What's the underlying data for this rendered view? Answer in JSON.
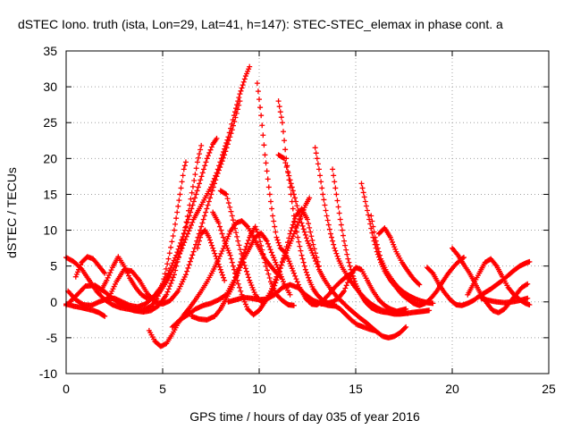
{
  "chart_data": {
    "type": "scatter",
    "title": "dSTEC Iono. truth (ista, Lon=29, Lat=41, h=147): STEC-STEC_elemax in phase cont. a",
    "xlabel": "GPS time / hours of day 035 of year 2016",
    "ylabel": "dSTEC  / TECUs",
    "xlim": [
      0,
      25
    ],
    "ylim": [
      -10,
      35
    ],
    "x_ticks": [
      0,
      5,
      10,
      15,
      20,
      25
    ],
    "y_ticks": [
      -10,
      -5,
      0,
      5,
      10,
      15,
      20,
      25,
      30,
      35
    ],
    "grid": true,
    "marker": "plus",
    "color": "#ff0000",
    "series": [
      {
        "x": [
          0.0,
          0.4,
          0.8,
          1.2,
          1.6,
          2.0,
          2.4,
          2.8,
          3.2,
          3.6,
          4.0,
          4.4,
          4.7,
          5.0,
          5.3,
          5.6,
          5.9,
          6.1,
          6.2
        ],
        "values": [
          6.2,
          5.6,
          4.6,
          3.0,
          1.4,
          0.3,
          -0.4,
          -0.8,
          -1.0,
          -1.2,
          -1.1,
          -0.6,
          0.4,
          2.5,
          6.0,
          10.0,
          15.0,
          18.5,
          19.5
        ]
      },
      {
        "x": [
          0.0,
          0.5,
          1.0,
          1.5,
          2.0,
          2.5,
          3.0,
          3.5,
          4.0,
          4.4,
          4.8,
          5.2,
          5.6,
          6.0,
          6.4,
          6.8,
          7.0
        ],
        "values": [
          -0.5,
          0.8,
          2.2,
          2.3,
          1.4,
          0.3,
          -0.6,
          -1.2,
          -1.4,
          -1.2,
          -0.5,
          1.0,
          3.8,
          8.0,
          13.5,
          19.5,
          21.8
        ]
      },
      {
        "x": [
          0.0,
          0.4,
          0.8,
          1.1,
          1.4,
          1.7,
          2.0
        ],
        "values": [
          -0.3,
          -0.6,
          -0.8,
          -1.0,
          -1.2,
          -1.5,
          -2.0
        ]
      },
      {
        "x": [
          0.1,
          0.5,
          0.9,
          1.3,
          1.7,
          2.1,
          2.5,
          2.9,
          3.3,
          3.7,
          4.1,
          4.5,
          4.9,
          5.3,
          5.7,
          6.1,
          6.5,
          6.9,
          7.3,
          7.6,
          7.8
        ],
        "values": [
          1.5,
          0.3,
          -0.4,
          -0.5,
          0.0,
          0.4,
          0.5,
          0.0,
          -0.5,
          -0.7,
          -0.3,
          0.6,
          2.0,
          4.0,
          6.5,
          9.5,
          13.0,
          16.5,
          20.0,
          22.0,
          22.8
        ]
      },
      {
        "x": [
          0.5,
          0.8,
          1.1,
          1.4,
          1.7,
          2.0
        ],
        "values": [
          3.5,
          5.5,
          6.3,
          6.0,
          5.0,
          4.0
        ]
      },
      {
        "x": [
          1.8,
          2.1,
          2.4,
          2.7,
          3.0,
          3.3,
          3.6,
          3.9,
          4.2,
          4.5,
          4.8,
          5.1,
          5.4,
          5.7,
          6.0,
          6.3,
          6.6,
          6.9,
          7.2,
          7.5,
          7.8,
          8.1,
          8.4,
          8.7,
          9.0,
          9.3,
          9.5
        ],
        "values": [
          1.5,
          3.0,
          4.8,
          6.3,
          5.0,
          3.3,
          2.0,
          1.0,
          0.5,
          0.6,
          1.2,
          2.4,
          3.8,
          5.5,
          7.5,
          9.5,
          11.5,
          13.0,
          14.5,
          16.0,
          18.0,
          20.5,
          23.0,
          26.0,
          29.0,
          31.5,
          32.8
        ]
      },
      {
        "x": [
          2.2,
          2.6,
          3.0,
          3.4,
          3.8,
          4.2,
          4.6,
          5.0,
          5.4,
          5.8,
          6.2,
          6.6,
          7.0,
          7.4,
          7.8,
          8.2,
          8.6,
          9.0
        ],
        "values": [
          0.5,
          2.8,
          4.5,
          4.3,
          3.0,
          1.2,
          0.0,
          -0.3,
          0.2,
          1.5,
          3.8,
          7.0,
          10.5,
          14.0,
          17.5,
          20.5,
          24.0,
          28.0
        ]
      },
      {
        "x": [
          4.3,
          4.6,
          4.9,
          5.2,
          5.5,
          5.8,
          6.1,
          6.4,
          6.7,
          7.0,
          7.3,
          7.6,
          7.9,
          8.2,
          8.5,
          8.8,
          9.1,
          9.4,
          9.7,
          10.0,
          10.3,
          10.6,
          10.9,
          11.1
        ],
        "values": [
          -4.0,
          -5.5,
          -6.2,
          -5.8,
          -4.5,
          -3.0,
          -1.8,
          -0.8,
          0.3,
          1.5,
          2.8,
          4.3,
          6.0,
          7.8,
          9.8,
          11.0,
          11.3,
          10.5,
          9.0,
          7.5,
          6.0,
          5.0,
          4.0,
          3.5
        ]
      },
      {
        "x": [
          5.5,
          5.9,
          6.3,
          6.7,
          7.1,
          7.5,
          7.9,
          8.3,
          8.7,
          9.1,
          9.5,
          9.8,
          10.0,
          10.3,
          10.6,
          10.9,
          11.2,
          11.5,
          11.8
        ],
        "values": [
          -3.5,
          -2.5,
          -1.8,
          -1.0,
          -0.5,
          -0.2,
          0.3,
          1.0,
          3.0,
          6.0,
          9.0,
          10.5,
          9.0,
          5.5,
          2.8,
          1.0,
          0.2,
          -0.4,
          -0.5
        ]
      },
      {
        "x": [
          6.5,
          6.9,
          7.3,
          7.7,
          8.0,
          8.3,
          8.6,
          8.9,
          9.2,
          9.5,
          9.8,
          10.1,
          10.4,
          10.7,
          11.0,
          11.3,
          11.6
        ],
        "values": [
          -2.0,
          -2.4,
          -2.5,
          -2.0,
          -1.0,
          0.5,
          2.0,
          4.0,
          6.0,
          7.5,
          9.0,
          9.6,
          8.5,
          6.5,
          4.5,
          2.5,
          1.0
        ]
      },
      {
        "x": [
          6.8,
          7.0,
          7.2,
          7.4,
          7.6,
          7.8,
          8.0,
          8.2
        ],
        "values": [
          7.5,
          9.5,
          10.0,
          9.0,
          7.5,
          6.0,
          4.5,
          3.0
        ]
      },
      {
        "x": [
          7.6,
          7.9,
          8.2,
          8.5,
          8.8,
          9.1,
          9.4,
          9.7,
          10.0,
          10.3,
          10.6,
          10.9,
          11.2,
          11.5,
          11.8,
          12.1,
          12.4,
          12.6
        ],
        "values": [
          12.5,
          11.0,
          8.5,
          6.5,
          3.5,
          1.0,
          -1.0,
          -1.8,
          -1.2,
          0.0,
          1.5,
          3.5,
          5.5,
          7.5,
          9.5,
          11.5,
          13.5,
          14.5
        ]
      },
      {
        "x": [
          8.0,
          8.3,
          8.6,
          8.9,
          9.2,
          9.5,
          9.8,
          10.1,
          10.4,
          10.7,
          11.0,
          11.3,
          11.6,
          11.9,
          12.2,
          12.5,
          12.8,
          13.1
        ],
        "values": [
          15.5,
          15.0,
          12.0,
          8.5,
          5.5,
          3.0,
          1.0,
          0.0,
          0.3,
          1.5,
          3.8,
          6.5,
          9.5,
          12.0,
          13.0,
          11.5,
          8.0,
          5.0
        ]
      },
      {
        "x": [
          8.4,
          8.8,
          9.2,
          9.6,
          10.0,
          10.4,
          10.8,
          11.2,
          11.6,
          12.0,
          12.4,
          12.8,
          13.2,
          13.6,
          14.0
        ],
        "values": [
          0.0,
          0.3,
          0.6,
          0.5,
          0.3,
          0.4,
          1.0,
          2.0,
          2.4,
          2.0,
          1.0,
          0.2,
          -0.2,
          -0.5,
          -0.6
        ]
      },
      {
        "x": [
          9.9,
          10.1,
          10.3,
          10.5,
          10.7,
          10.9,
          11.1,
          11.3,
          11.5,
          11.8,
          12.1,
          12.4,
          12.7,
          13.0,
          13.3,
          13.6,
          13.9,
          14.2,
          14.5,
          14.8
        ],
        "values": [
          30.5,
          26.0,
          20.5,
          16.0,
          12.0,
          9.0,
          7.5,
          7.0,
          6.0,
          4.0,
          2.0,
          0.5,
          -0.3,
          -0.4,
          0.2,
          1.0,
          2.0,
          2.8,
          3.5,
          4.0
        ]
      },
      {
        "x": [
          11.0,
          11.2,
          11.4,
          11.6,
          11.8,
          12.0,
          12.2,
          12.4,
          12.6,
          12.8,
          13.0,
          13.3,
          13.6,
          13.9,
          14.2,
          14.5,
          14.8,
          15.1,
          15.4,
          15.7,
          16.0
        ],
        "values": [
          28.0,
          25.0,
          20.0,
          16.0,
          12.0,
          9.0,
          6.5,
          4.5,
          3.0,
          1.8,
          1.0,
          0.2,
          -0.2,
          -0.5,
          -1.0,
          -1.8,
          -2.6,
          -3.2,
          -3.5,
          -3.8,
          -4.0
        ]
      },
      {
        "x": [
          11.0,
          11.3,
          11.6,
          11.9,
          12.2,
          12.5,
          12.8,
          13.1,
          13.4,
          13.7,
          14.0,
          14.3,
          14.6,
          14.9,
          15.2,
          15.5,
          15.8,
          16.1,
          16.4,
          16.7,
          17.0,
          17.3,
          17.6
        ],
        "values": [
          20.5,
          20.0,
          17.0,
          14.0,
          11.0,
          8.5,
          6.5,
          4.5,
          3.0,
          1.8,
          0.8,
          0.0,
          -0.8,
          -1.5,
          -2.2,
          -2.8,
          -3.5,
          -4.2,
          -4.8,
          -5.0,
          -4.8,
          -4.3,
          -3.5
        ]
      },
      {
        "x": [
          12.9,
          13.1,
          13.3,
          13.5,
          13.7,
          13.9,
          14.1,
          14.3,
          14.6,
          14.9,
          15.2,
          15.5,
          15.8,
          16.1,
          16.4,
          16.7,
          17.0,
          17.3,
          17.6,
          17.9,
          18.2,
          18.5,
          18.8
        ],
        "values": [
          21.5,
          18.5,
          15.0,
          12.0,
          9.5,
          7.5,
          6.0,
          4.8,
          3.5,
          2.3,
          1.3,
          0.4,
          -0.3,
          -0.8,
          -1.2,
          -1.5,
          -1.7,
          -1.7,
          -1.6,
          -1.5,
          -1.4,
          -1.3,
          -1.2
        ]
      },
      {
        "x": [
          13.8,
          14.0,
          14.2,
          14.4,
          14.6,
          14.8,
          15.0,
          15.2,
          15.5,
          15.8,
          16.1,
          16.4,
          16.7,
          17.0,
          17.3,
          17.6
        ],
        "values": [
          18.5,
          15.0,
          11.5,
          8.5,
          6.0,
          4.0,
          2.5,
          1.3,
          0.0,
          -0.8,
          -1.2,
          -1.4,
          -1.5,
          -1.4,
          -1.2,
          -1.0
        ]
      },
      {
        "x": [
          13.2,
          13.5,
          13.8,
          14.1,
          14.4,
          14.7,
          15.0,
          15.3,
          15.6,
          15.9,
          16.2,
          16.5,
          16.8,
          17.1,
          17.4,
          17.7
        ],
        "values": [
          -0.3,
          -0.2,
          0.0,
          0.5,
          1.5,
          3.5,
          4.8,
          4.5,
          3.0,
          1.5,
          0.3,
          -0.5,
          -1.0,
          -1.3,
          -1.5,
          -1.6
        ]
      },
      {
        "x": [
          15.3,
          15.5,
          15.7,
          15.9,
          16.1,
          16.3,
          16.5,
          16.8,
          17.1,
          17.4,
          17.7,
          18.0,
          18.3,
          18.6,
          18.9,
          19.2,
          19.5,
          19.8,
          20.1,
          20.4,
          20.6
        ],
        "values": [
          16.5,
          14.0,
          11.5,
          9.0,
          7.0,
          5.5,
          4.3,
          3.0,
          2.0,
          1.0,
          0.4,
          -0.2,
          -0.5,
          -0.2,
          0.5,
          1.5,
          2.8,
          4.0,
          5.0,
          5.8,
          6.2
        ]
      },
      {
        "x": [
          15.8,
          16.0,
          16.3,
          16.6,
          16.9,
          17.2,
          17.5,
          17.8,
          18.1,
          18.4,
          18.7,
          19.0
        ],
        "values": [
          12.0,
          9.0,
          6.0,
          4.2,
          3.0,
          2.0,
          1.3,
          0.8,
          0.4,
          0.1,
          -0.1,
          -0.2
        ]
      },
      {
        "x": [
          16.2,
          16.5,
          16.8,
          17.1,
          17.4,
          17.7,
          18.0,
          18.3
        ],
        "values": [
          9.5,
          10.3,
          9.0,
          7.0,
          5.5,
          4.3,
          3.2,
          2.4
        ]
      },
      {
        "x": [
          18.7,
          19.0,
          19.3,
          19.6,
          19.9,
          20.2,
          20.5,
          20.8,
          21.1,
          21.4,
          21.7,
          22.0,
          22.3,
          22.6,
          22.9,
          23.2,
          23.5,
          23.8,
          24.0
        ],
        "values": [
          4.8,
          4.0,
          2.5,
          1.3,
          0.3,
          -0.4,
          -0.5,
          -0.2,
          0.2,
          0.8,
          1.3,
          1.8,
          2.4,
          3.0,
          3.7,
          4.4,
          5.0,
          5.4,
          5.6
        ]
      },
      {
        "x": [
          20.0,
          20.3,
          20.6,
          20.9,
          21.2,
          21.5,
          21.8,
          22.1,
          22.4,
          22.7,
          23.0,
          23.3,
          23.6,
          23.9
        ],
        "values": [
          7.5,
          6.5,
          5.2,
          4.0,
          2.5,
          1.0,
          -0.2,
          -1.2,
          -1.5,
          -1.0,
          0.0,
          1.0,
          2.0,
          2.5
        ]
      },
      {
        "x": [
          20.8,
          21.1,
          21.4,
          21.7,
          22.0,
          22.3,
          22.6,
          22.9,
          23.2,
          23.5,
          23.8,
          24.0
        ],
        "values": [
          1.0,
          2.5,
          4.0,
          5.5,
          6.0,
          5.0,
          3.5,
          2.0,
          1.0,
          0.3,
          -0.2,
          -0.4
        ]
      },
      {
        "x": [
          21.5,
          21.9,
          22.3,
          22.7,
          23.1,
          23.5,
          23.9
        ],
        "values": [
          0.5,
          0.2,
          0.0,
          -0.1,
          0.0,
          0.2,
          0.5
        ]
      }
    ]
  }
}
